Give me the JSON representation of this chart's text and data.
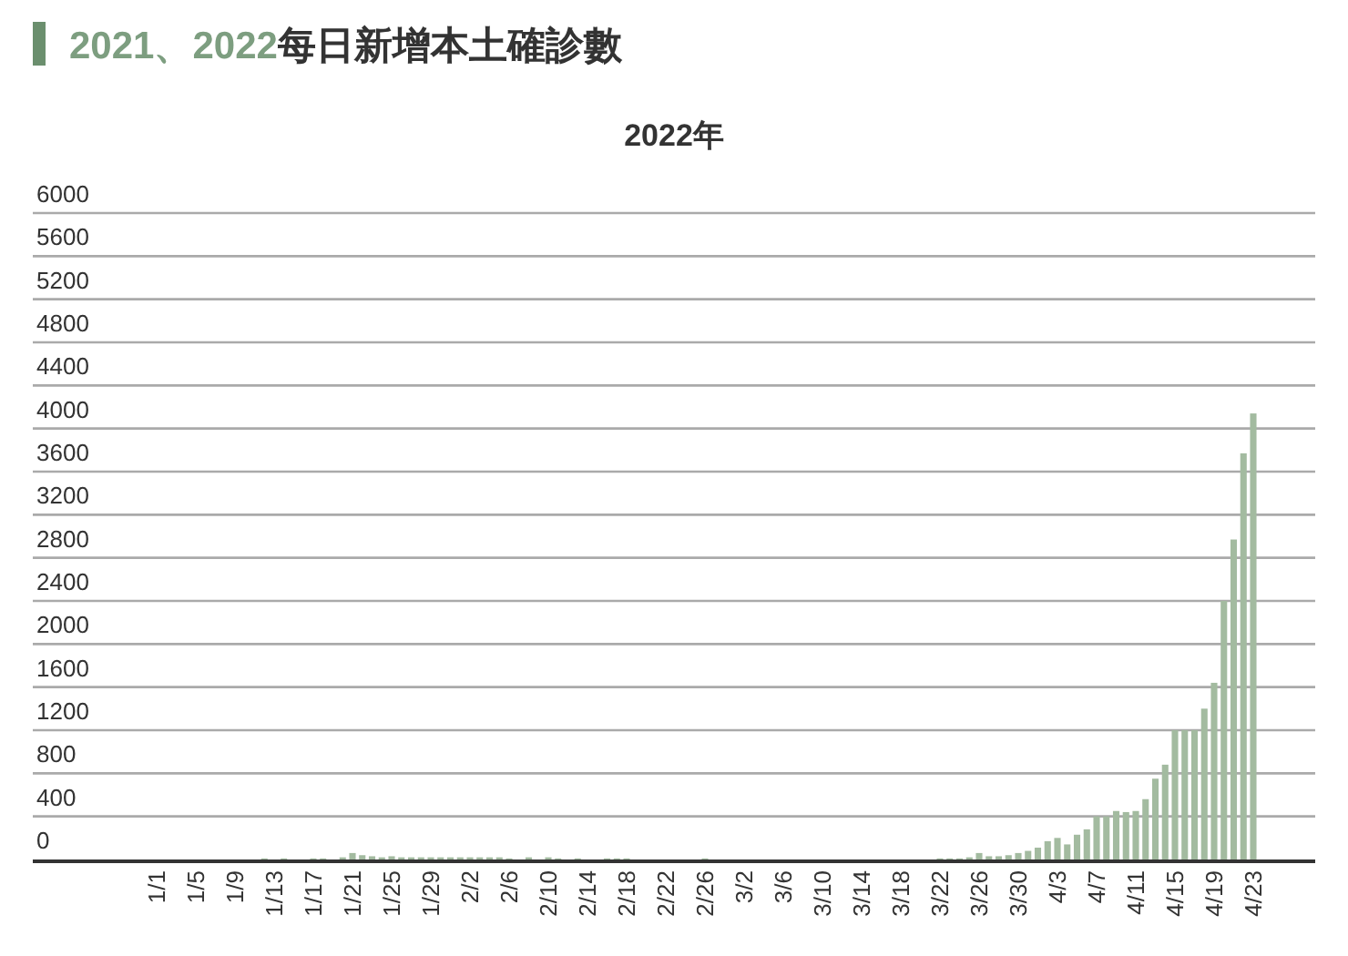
{
  "chart_data": {
    "type": "bar",
    "title": "2021、2022每日新增本土確診數",
    "subtitle": "2022年",
    "categories": [
      "1/1",
      null,
      null,
      null,
      "1/5",
      null,
      null,
      null,
      "1/9",
      null,
      null,
      null,
      "1/13",
      null,
      null,
      null,
      "1/17",
      null,
      null,
      null,
      "1/21",
      null,
      null,
      null,
      "1/25",
      null,
      null,
      null,
      "1/29",
      null,
      null,
      null,
      "2/2",
      null,
      null,
      null,
      "2/6",
      null,
      null,
      null,
      "2/10",
      null,
      null,
      null,
      "2/14",
      null,
      null,
      null,
      "2/18",
      null,
      null,
      null,
      "2/22",
      null,
      null,
      null,
      "2/26",
      null,
      null,
      null,
      "3/2",
      null,
      null,
      null,
      "3/6",
      null,
      null,
      null,
      "3/10",
      null,
      null,
      null,
      "3/14",
      null,
      null,
      null,
      "3/18",
      null,
      null,
      null,
      "3/22",
      null,
      null,
      null,
      "3/26",
      null,
      null,
      null,
      "3/30",
      null,
      null,
      null,
      "4/3",
      null,
      null,
      null,
      "4/7",
      null,
      null,
      null,
      "4/11",
      null,
      null,
      null,
      "4/15",
      null,
      null,
      null,
      "4/19",
      null,
      null,
      null,
      "4/23"
    ],
    "values": [
      0,
      0,
      0,
      0,
      0,
      0,
      0,
      0,
      0,
      0,
      0,
      10,
      0,
      10,
      0,
      0,
      10,
      10,
      0,
      20,
      60,
      40,
      30,
      20,
      30,
      20,
      20,
      20,
      20,
      20,
      20,
      20,
      20,
      20,
      20,
      20,
      10,
      0,
      20,
      0,
      20,
      10,
      0,
      10,
      0,
      0,
      10,
      10,
      10,
      0,
      0,
      0,
      0,
      0,
      0,
      0,
      10,
      0,
      0,
      0,
      0,
      0,
      0,
      0,
      0,
      0,
      0,
      0,
      0,
      0,
      0,
      0,
      0,
      0,
      0,
      0,
      0,
      0,
      0,
      0,
      10,
      10,
      10,
      20,
      60,
      30,
      30,
      40,
      60,
      80,
      110,
      170,
      200,
      140,
      230,
      280,
      400,
      400,
      450,
      440,
      450,
      560,
      750,
      880,
      1200,
      1200,
      1200,
      1400,
      1640,
      2400,
      2970,
      3770,
      4140
    ],
    "color": "#a3bba0",
    "ylim": [
      0,
      6000
    ],
    "yticks": [
      0,
      400,
      800,
      1200,
      1600,
      2000,
      2400,
      2800,
      3200,
      3600,
      4000,
      4400,
      4800,
      5200,
      5600,
      6000
    ],
    "grid": "y"
  }
}
